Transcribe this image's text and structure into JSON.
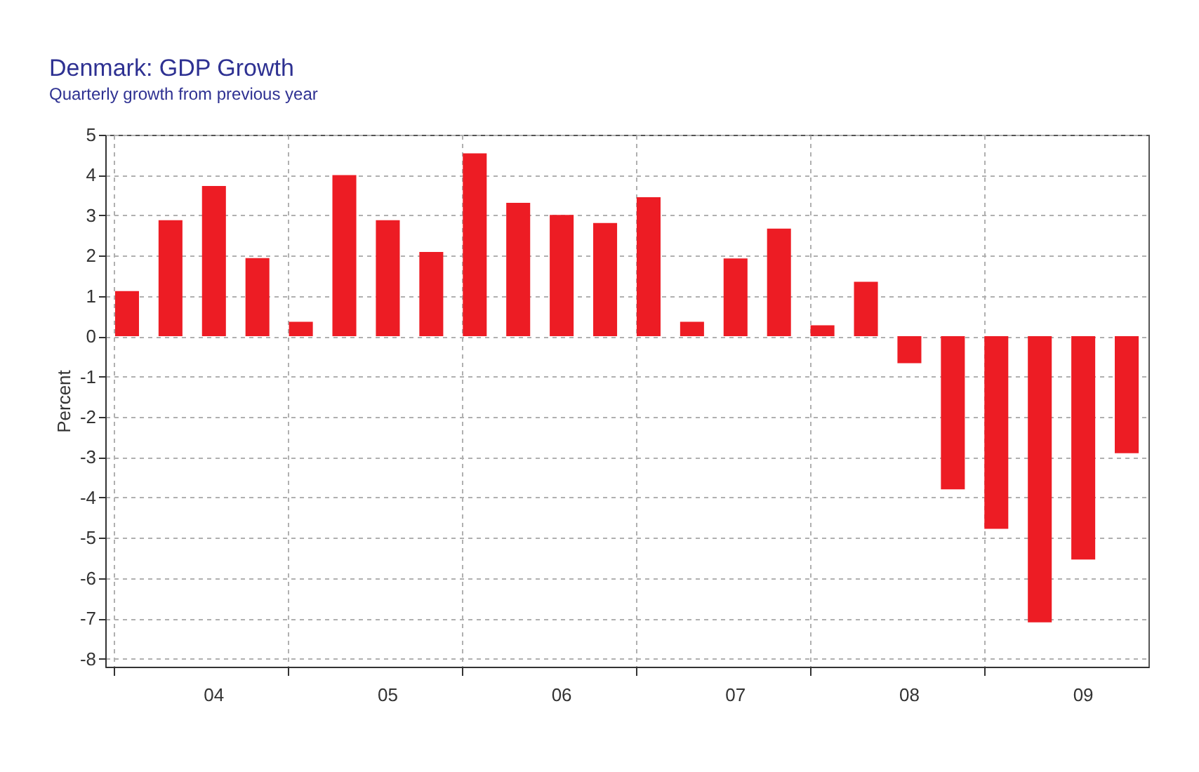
{
  "chart_data": {
    "type": "bar",
    "title": "Denmark: GDP Growth",
    "subtitle": "Quarterly growth from previous year",
    "ylabel": "Percent",
    "categories": [
      null,
      null,
      "04",
      null,
      null,
      null,
      "05",
      null,
      null,
      null,
      "06",
      null,
      null,
      null,
      "07",
      null,
      null,
      null,
      "08",
      null,
      null,
      null,
      "09",
      null
    ],
    "values": [
      1.12,
      2.88,
      3.73,
      1.94,
      0.36,
      4.0,
      2.88,
      2.09,
      4.54,
      3.31,
      3.01,
      2.81,
      3.45,
      0.36,
      1.93,
      2.67,
      0.27,
      1.35,
      -0.67,
      -3.8,
      -4.78,
      -7.1,
      -5.54,
      -2.9
    ],
    "color": "#ed1c24",
    "ylim": [
      -8.2,
      5
    ],
    "yticks": [
      -8,
      -7,
      -6,
      -5,
      -4,
      -3,
      -2,
      -1,
      0,
      1,
      2,
      3,
      4,
      5
    ],
    "grid": true
  }
}
